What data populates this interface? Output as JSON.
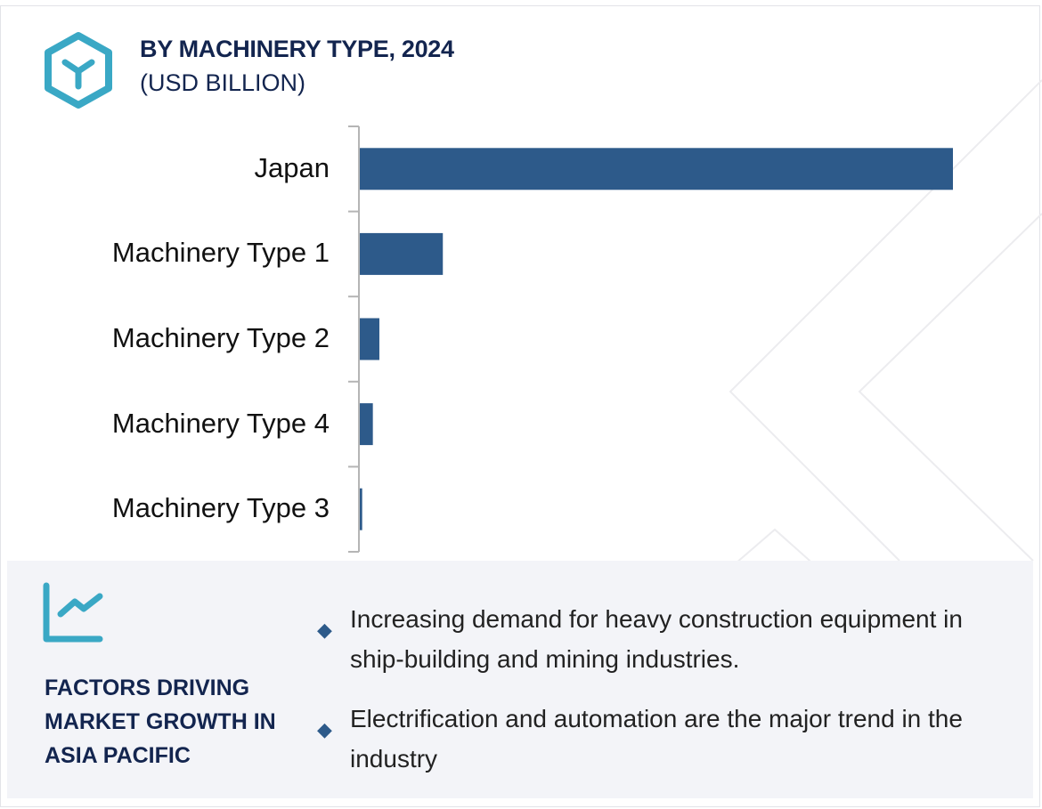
{
  "header": {
    "title": "BY MACHINERY TYPE, 2024",
    "subtitle": "(USD BILLION)",
    "icon": "hexagon-y-icon",
    "icon_color": "#3aa8c5"
  },
  "chart_data": {
    "type": "bar",
    "orientation": "horizontal",
    "title": "BY MACHINERY TYPE, 2024",
    "subtitle": "(USD BILLION)",
    "categories": [
      "Japan",
      "Machinery Type 1",
      "Machinery Type 2",
      "Machinery Type 4",
      "Machinery Type 3"
    ],
    "values": [
      100,
      14,
      3.3,
      2.2,
      0.4
    ],
    "xlim": [
      0,
      100
    ],
    "grid": false,
    "bar_color": "#2d5a8a"
  },
  "panel": {
    "icon": "line-chart-icon",
    "title_lines": [
      "FACTORS DRIVING",
      "MARKET GROWTH IN",
      "ASIA PACIFIC"
    ],
    "bullets": [
      "Increasing demand for heavy construction equipment in ship-building and mining industries.",
      "Electrification and automation are the major trend in the industry"
    ],
    "bullet_icon": "diamond-icon"
  }
}
